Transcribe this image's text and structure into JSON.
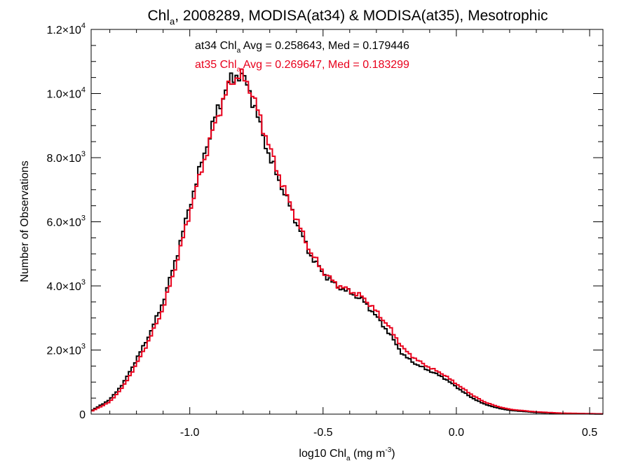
{
  "chart_data": {
    "type": "line",
    "title": {
      "part1": "Chl",
      "sub": "a",
      "part2": ", 2008289, MODISA(at34) & MODISA(at35), Mesotrophic"
    },
    "xlabel": {
      "part1": "log10 Chl",
      "sub": "a",
      "part2": " (mg m",
      "sup": "-3",
      "part3": ")"
    },
    "ylabel": "Number of Observations",
    "xlim": [
      -1.37,
      0.55
    ],
    "ylim": [
      0,
      12000
    ],
    "x_ticks": [
      {
        "value": -1.0,
        "label": "-1.0"
      },
      {
        "value": -0.5,
        "label": "-0.5"
      },
      {
        "value": 0.0,
        "label": "0.0"
      },
      {
        "value": 0.5,
        "label": "0.5"
      }
    ],
    "y_ticks": [
      {
        "value": 0,
        "mant": "0",
        "exp": ""
      },
      {
        "value": 2000,
        "mant": "2.0×10",
        "exp": "3"
      },
      {
        "value": 4000,
        "mant": "4.0×10",
        "exp": "3"
      },
      {
        "value": 6000,
        "mant": "6.0×10",
        "exp": "3"
      },
      {
        "value": 8000,
        "mant": "8.0×10",
        "exp": "3"
      },
      {
        "value": 10000,
        "mant": "1.0×10",
        "exp": "4"
      },
      {
        "value": 12000,
        "mant": "1.2×10",
        "exp": "4"
      }
    ],
    "annotations": [
      {
        "id": "at34",
        "color": "#000000",
        "part1": "at34 Chl",
        "sub": "a",
        "part2": " Avg = 0.258643, Med = 0.179446"
      },
      {
        "id": "at35",
        "color": "#e8001c",
        "part1": "at35 Chl",
        "sub": "a",
        "part2": " Avg = 0.269647, Med = 0.183299"
      }
    ],
    "series": [
      {
        "id": "at34",
        "color": "#000000",
        "x": [
          -1.37,
          -1.3,
          -1.25,
          -1.2,
          -1.15,
          -1.1,
          -1.05,
          -1.0,
          -0.95,
          -0.9,
          -0.85,
          -0.82,
          -0.8,
          -0.78,
          -0.75,
          -0.7,
          -0.65,
          -0.6,
          -0.55,
          -0.5,
          -0.45,
          -0.4,
          -0.35,
          -0.3,
          -0.25,
          -0.2,
          -0.15,
          -0.1,
          -0.05,
          0.0,
          0.05,
          0.1,
          0.15,
          0.2,
          0.3,
          0.4,
          0.55
        ],
        "y": [
          100,
          450,
          950,
          1700,
          2500,
          3500,
          4900,
          6500,
          8000,
          9400,
          10400,
          10600,
          10500,
          10200,
          9400,
          8000,
          7000,
          6000,
          5000,
          4400,
          4000,
          3800,
          3550,
          3050,
          2500,
          1850,
          1550,
          1350,
          1150,
          850,
          550,
          330,
          200,
          120,
          50,
          20,
          5
        ]
      },
      {
        "id": "at35",
        "color": "#e8001c",
        "x": [
          -1.37,
          -1.3,
          -1.25,
          -1.2,
          -1.15,
          -1.1,
          -1.05,
          -1.0,
          -0.95,
          -0.9,
          -0.85,
          -0.82,
          -0.8,
          -0.78,
          -0.75,
          -0.7,
          -0.65,
          -0.6,
          -0.55,
          -0.5,
          -0.45,
          -0.4,
          -0.35,
          -0.3,
          -0.25,
          -0.2,
          -0.15,
          -0.1,
          -0.05,
          0.0,
          0.05,
          0.1,
          0.15,
          0.2,
          0.3,
          0.4,
          0.55
        ],
        "y": [
          80,
          380,
          850,
          1550,
          2350,
          3300,
          4700,
          6300,
          7800,
          9200,
          10300,
          10550,
          10500,
          10300,
          9600,
          8300,
          7100,
          6100,
          5100,
          4450,
          4050,
          3850,
          3650,
          3200,
          2700,
          2050,
          1700,
          1450,
          1250,
          950,
          650,
          400,
          250,
          150,
          70,
          30,
          8
        ]
      }
    ]
  }
}
